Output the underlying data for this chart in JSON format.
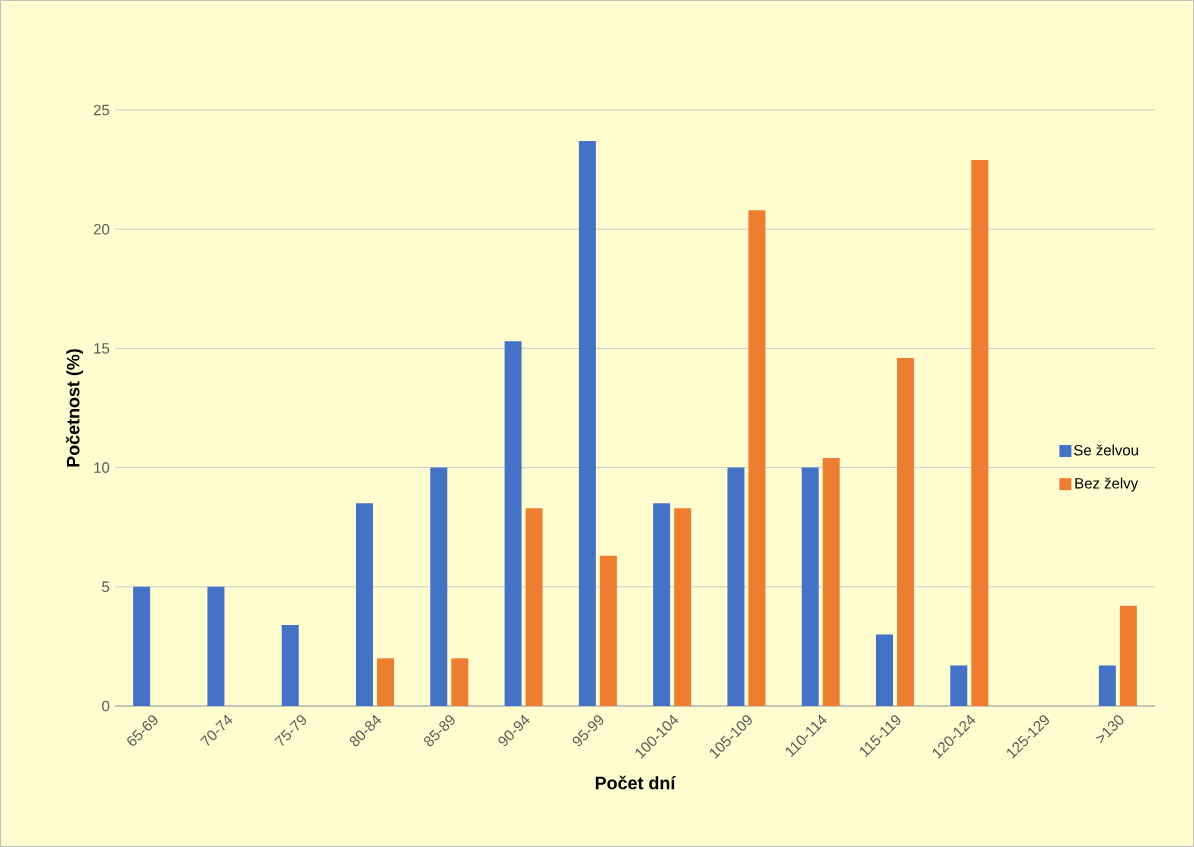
{
  "chart_data": {
    "type": "bar",
    "categories": [
      "65-69",
      "70-74",
      "75-79",
      "80-84",
      "85-89",
      "90-94",
      "95-99",
      "100-104",
      "105-109",
      "110-114",
      "115-119",
      "120-124",
      "125-129",
      ">130"
    ],
    "series": [
      {
        "name": "Se želvou",
        "color": "#4472c4",
        "values": [
          5,
          5,
          3.4,
          8.5,
          10,
          15.3,
          23.7,
          8.5,
          10,
          10,
          3,
          1.7,
          0,
          1.7
        ]
      },
      {
        "name": "Bez želvy",
        "color": "#ed7d31",
        "values": [
          0,
          0,
          0,
          2,
          2,
          8.3,
          6.3,
          8.3,
          20.8,
          10.4,
          14.6,
          22.9,
          0,
          4.2
        ]
      }
    ],
    "xlabel": "Počet dní",
    "ylabel": "Početnost (%)",
    "ylim": [
      0,
      25
    ],
    "yticks": [
      0,
      5,
      10,
      15,
      20,
      25
    ],
    "grid": "y",
    "legend": "right"
  }
}
